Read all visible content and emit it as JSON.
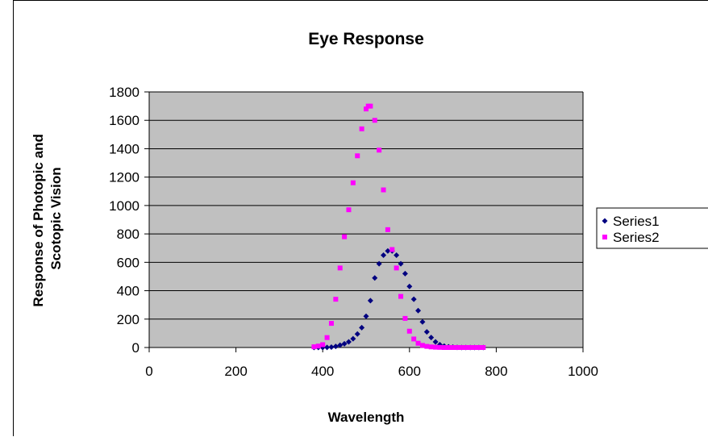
{
  "chart_data": {
    "type": "scatter",
    "title": "Eye Response",
    "xlabel": "Wavelength",
    "ylabel_lines": [
      "Response of Photopic and",
      "Scotopic Vision"
    ],
    "xlim": [
      0,
      1000
    ],
    "ylim": [
      0,
      1800
    ],
    "x_ticks": [
      0,
      200,
      400,
      600,
      800,
      1000
    ],
    "y_ticks": [
      0,
      200,
      400,
      600,
      800,
      1000,
      1200,
      1400,
      1600,
      1800
    ],
    "grid": "horizontal",
    "plot_background": "#c0c0c0",
    "legend_position": "right",
    "series": [
      {
        "name": "Series1",
        "color": "#000080",
        "marker": "diamond",
        "x": [
          380,
          390,
          400,
          410,
          420,
          430,
          440,
          450,
          460,
          470,
          480,
          490,
          500,
          510,
          520,
          530,
          540,
          550,
          560,
          570,
          580,
          590,
          600,
          610,
          620,
          630,
          640,
          650,
          660,
          670,
          680,
          690,
          700,
          710,
          720,
          730,
          740,
          750,
          760,
          770
        ],
        "y": [
          0,
          0,
          0,
          1,
          3,
          8,
          16,
          26,
          40,
          62,
          95,
          140,
          220,
          330,
          490,
          590,
          650,
          680,
          680,
          650,
          590,
          520,
          430,
          340,
          260,
          180,
          110,
          70,
          40,
          20,
          10,
          5,
          3,
          1,
          0,
          0,
          0,
          0,
          0,
          0
        ]
      },
      {
        "name": "Series2",
        "color": "#ff00ff",
        "marker": "square",
        "x": [
          380,
          390,
          400,
          410,
          420,
          430,
          440,
          450,
          460,
          470,
          480,
          490,
          500,
          505,
          510,
          520,
          530,
          540,
          550,
          560,
          570,
          580,
          590,
          600,
          610,
          620,
          630,
          640,
          650,
          660,
          670,
          680,
          690,
          700,
          710,
          720,
          730,
          740,
          750,
          760,
          770
        ],
        "y": [
          5,
          10,
          20,
          70,
          170,
          340,
          560,
          780,
          970,
          1160,
          1350,
          1540,
          1680,
          1700,
          1700,
          1600,
          1390,
          1110,
          830,
          690,
          560,
          360,
          205,
          115,
          60,
          30,
          15,
          8,
          4,
          2,
          1,
          0,
          0,
          0,
          0,
          0,
          0,
          0,
          0,
          0,
          0
        ]
      }
    ]
  }
}
